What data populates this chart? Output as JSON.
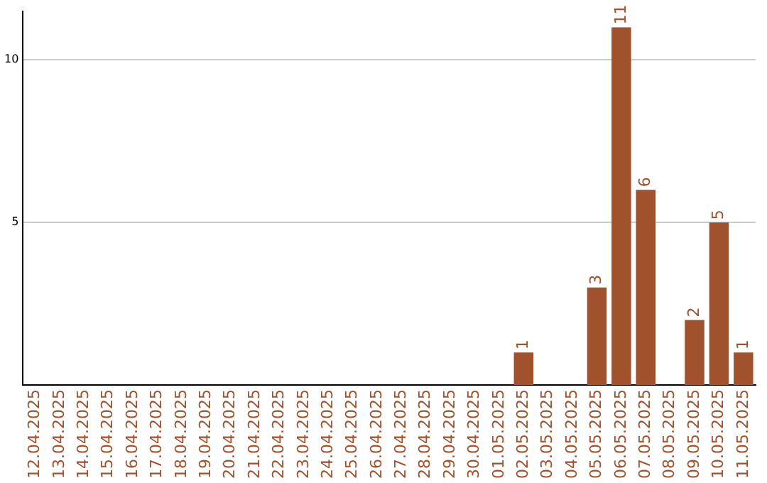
{
  "chart_data": {
    "type": "bar",
    "categories": [
      "12.04.2025",
      "13.04.2025",
      "14.04.2025",
      "15.04.2025",
      "16.04.2025",
      "17.04.2025",
      "18.04.2025",
      "19.04.2025",
      "20.04.2025",
      "21.04.2025",
      "22.04.2025",
      "23.04.2025",
      "24.04.2025",
      "25.04.2025",
      "26.04.2025",
      "27.04.2025",
      "28.04.2025",
      "29.04.2025",
      "30.04.2025",
      "01.05.2025",
      "02.05.2025",
      "03.05.2025",
      "04.05.2025",
      "05.05.2025",
      "06.05.2025",
      "07.05.2025",
      "08.05.2025",
      "09.05.2025",
      "10.05.2025",
      "11.05.2025"
    ],
    "values": [
      0,
      0,
      0,
      0,
      0,
      0,
      0,
      0,
      0,
      0,
      0,
      0,
      0,
      0,
      0,
      0,
      0,
      0,
      0,
      0,
      1,
      0,
      0,
      3,
      11,
      6,
      0,
      2,
      5,
      1
    ],
    "value_labels": [
      null,
      null,
      null,
      null,
      null,
      null,
      null,
      null,
      null,
      null,
      null,
      null,
      null,
      null,
      null,
      null,
      null,
      null,
      null,
      null,
      "1",
      null,
      null,
      "3",
      "11",
      "6",
      null,
      "2",
      "5",
      "1"
    ],
    "color": "#a0522d",
    "ylim": [
      0,
      11.5
    ],
    "yticks": [
      5,
      10
    ],
    "grid": "y",
    "legend": false
  }
}
